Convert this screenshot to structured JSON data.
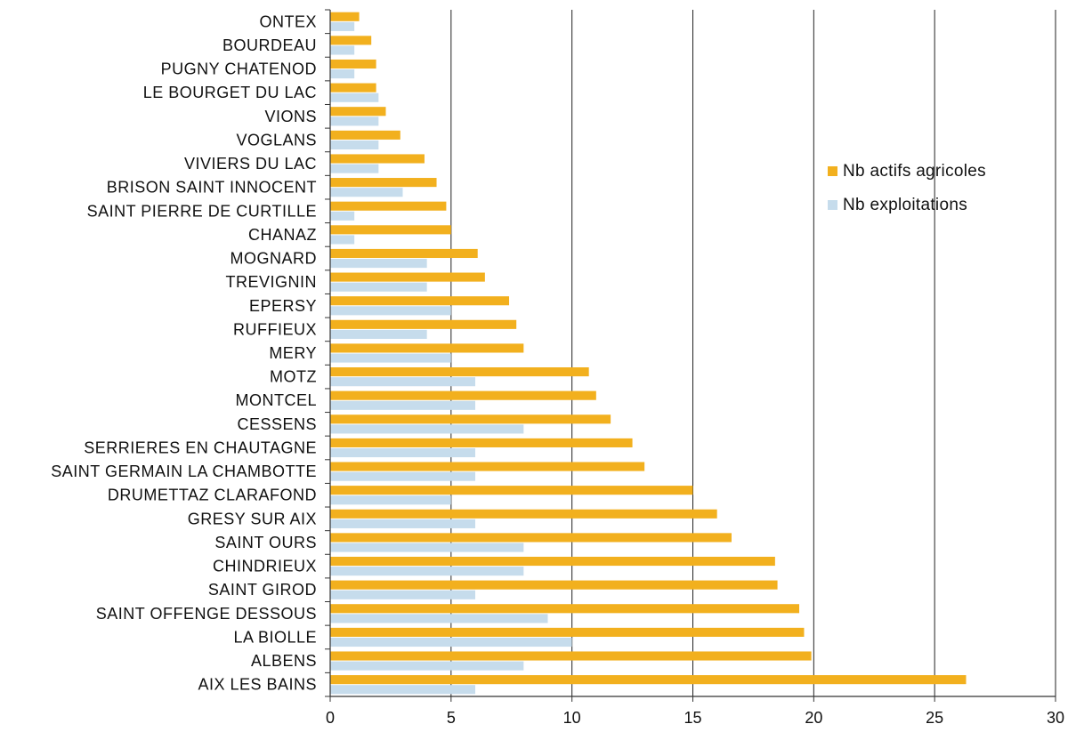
{
  "chart_data": {
    "type": "bar",
    "orientation": "horizontal",
    "categories": [
      "ONTEX",
      "BOURDEAU",
      "PUGNY CHATENOD",
      "LE BOURGET DU LAC",
      "VIONS",
      "VOGLANS",
      "VIVIERS DU LAC",
      "BRISON SAINT INNOCENT",
      "SAINT PIERRE DE CURTILLE",
      "CHANAZ",
      "MOGNARD",
      "TREVIGNIN",
      "EPERSY",
      "RUFFIEUX",
      "MERY",
      "MOTZ",
      "MONTCEL",
      "CESSENS",
      "SERRIERES EN CHAUTAGNE",
      "SAINT GERMAIN LA CHAMBOTTE",
      "DRUMETTAZ CLARAFOND",
      "GRESY SUR AIX",
      "SAINT OURS",
      "CHINDRIEUX",
      "SAINT GIROD",
      "SAINT OFFENGE DESSOUS",
      "LA BIOLLE",
      "ALBENS",
      "AIX LES BAINS"
    ],
    "series": [
      {
        "name": "Nb actifs agricoles",
        "color": "#f2b01e",
        "values": [
          1.2,
          1.7,
          1.9,
          1.9,
          2.3,
          2.9,
          3.9,
          4.4,
          4.8,
          5.0,
          6.1,
          6.4,
          7.4,
          7.7,
          8.0,
          10.7,
          11.0,
          11.6,
          12.5,
          13.0,
          15.0,
          16.0,
          16.6,
          18.4,
          18.5,
          19.4,
          19.6,
          19.9,
          26.3
        ]
      },
      {
        "name": "Nb exploitations",
        "color": "#c6dcec",
        "values": [
          1,
          1,
          1,
          2,
          2,
          2,
          2,
          3,
          1,
          1,
          4,
          4,
          5,
          4,
          5,
          6,
          6,
          8,
          6,
          6,
          5,
          6,
          8,
          8,
          6,
          9,
          10,
          8,
          6
        ]
      }
    ],
    "xlim": [
      0,
      30
    ],
    "xticks": [
      "0",
      "5",
      "10",
      "15",
      "20",
      "25",
      "30"
    ],
    "xlabel": "",
    "ylabel": "",
    "grid": "vertical",
    "legend": "right"
  }
}
